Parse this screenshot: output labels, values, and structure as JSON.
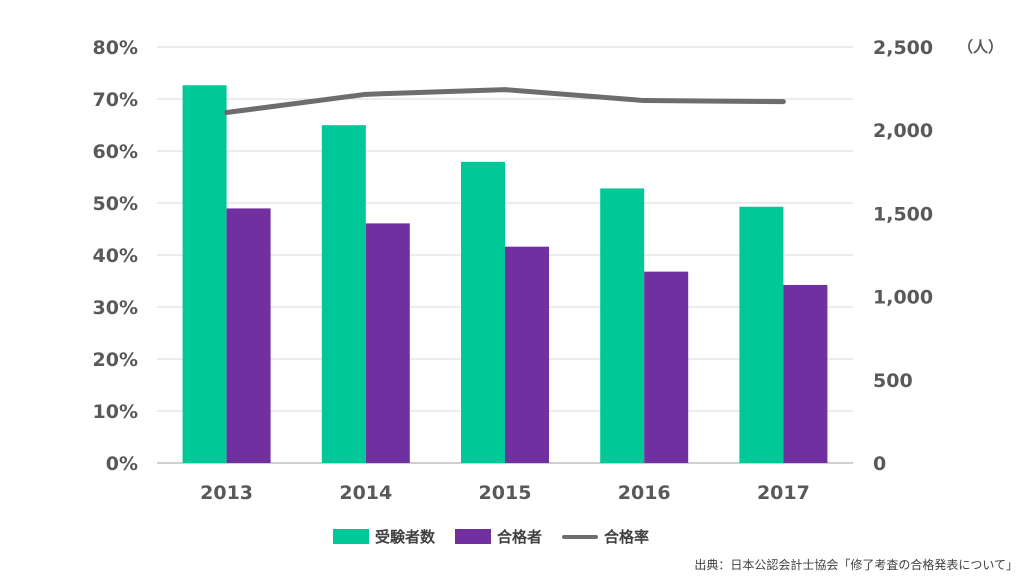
{
  "chart_data": {
    "type": "bar",
    "categories": [
      "2013",
      "2014",
      "2015",
      "2016",
      "2017"
    ],
    "series": [
      {
        "name": "受験者数",
        "type": "bar",
        "axis": "right",
        "color": "#00C896",
        "values": [
          2270,
          2030,
          1810,
          1650,
          1540
        ]
      },
      {
        "name": "合格者",
        "type": "bar",
        "axis": "right",
        "color": "#7030A0",
        "values": [
          1530,
          1440,
          1300,
          1150,
          1070
        ]
      },
      {
        "name": "合格率",
        "type": "line",
        "axis": "left",
        "color": "#6D6D6D",
        "values": [
          67.4,
          70.9,
          71.8,
          69.7,
          69.5
        ]
      }
    ],
    "y_left": {
      "ticks": [
        "0%",
        "10%",
        "20%",
        "30%",
        "40%",
        "50%",
        "60%",
        "70%",
        "80%"
      ],
      "min": 0,
      "max": 80,
      "step": 10
    },
    "y_right": {
      "ticks": [
        "0",
        "500",
        "1,000",
        "1,500",
        "2,000",
        "2,500"
      ],
      "min": 0,
      "max": 2500,
      "step": 500,
      "unit": "（人）"
    },
    "grid": true,
    "legend_position": "bottom"
  },
  "source": "出典：日本公認会計士協会「修了考査の合格発表について」"
}
